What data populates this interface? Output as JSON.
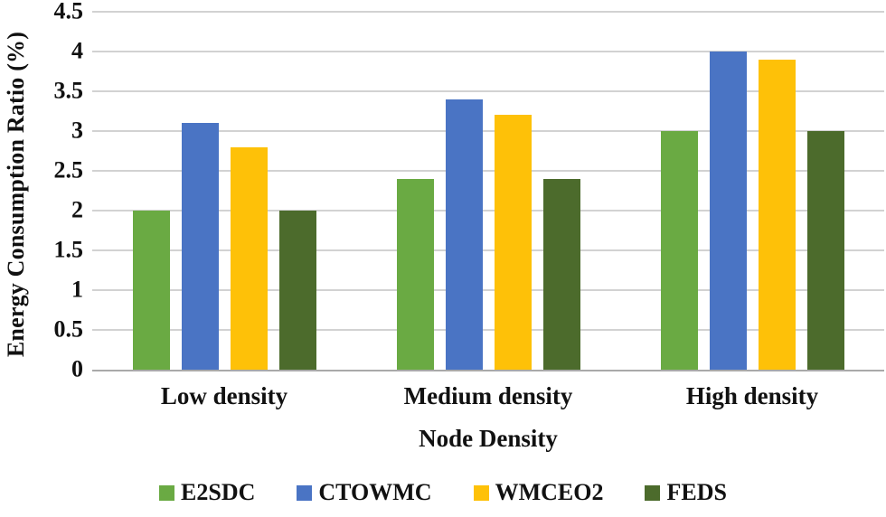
{
  "chart_data": {
    "type": "bar",
    "title": "",
    "xlabel": "Node Density",
    "ylabel": "Energy Consumption Ratio (%)",
    "categories": [
      "Low density",
      "Medium density",
      "High density"
    ],
    "series": [
      {
        "name": "E2SDC",
        "color": "#6aaa43",
        "values": [
          2.0,
          2.4,
          3.0
        ]
      },
      {
        "name": "CTOWMC",
        "color": "#4a74c4",
        "values": [
          3.1,
          3.4,
          4.0
        ]
      },
      {
        "name": "WMCEO2",
        "color": "#fec108",
        "values": [
          2.8,
          3.2,
          3.9
        ]
      },
      {
        "name": "FEDS",
        "color": "#4c6b2c",
        "values": [
          2.0,
          2.4,
          3.0
        ]
      }
    ],
    "ylim": [
      0,
      4.5
    ],
    "yticks": {
      "values": [
        0,
        0.5,
        1,
        1.5,
        2,
        2.5,
        3,
        3.5,
        4,
        4.5
      ],
      "labels": [
        "0",
        "0.5",
        "1",
        "1.5",
        "2",
        "2.5",
        "3",
        "3.5",
        "4",
        "4.5"
      ]
    },
    "grid": true,
    "legend_position": "bottom",
    "colors": {
      "gridline": "#d2d2d2",
      "axis_line": "#a9a9a9",
      "text": "#111111"
    }
  }
}
